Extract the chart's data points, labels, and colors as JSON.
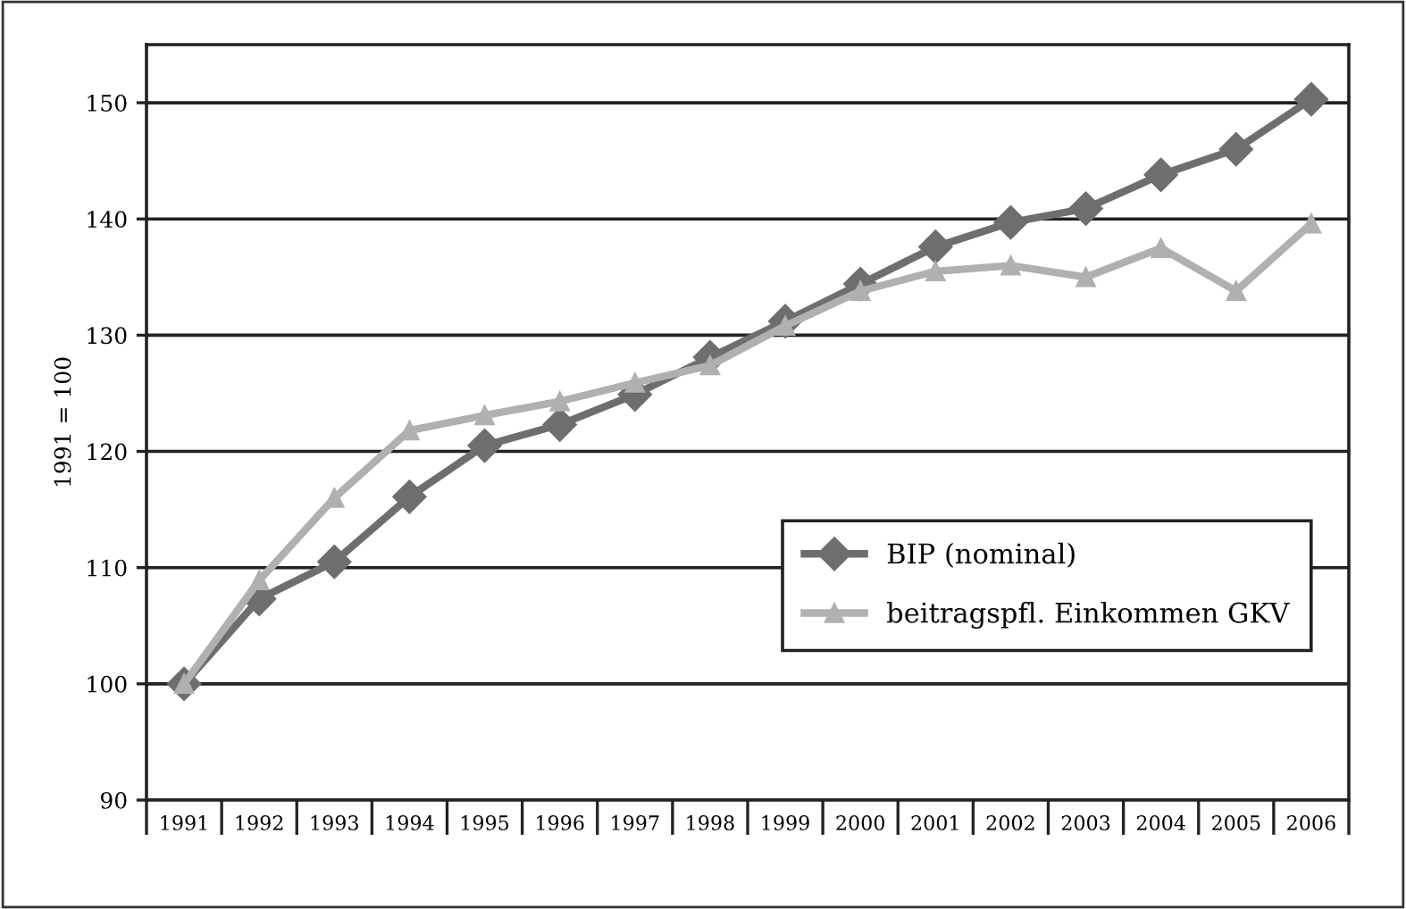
{
  "chart_data": {
    "type": "line",
    "ylabel": "1991 = 100",
    "categories": [
      "1991",
      "1992",
      "1993",
      "1994",
      "1995",
      "1996",
      "1997",
      "1998",
      "1999",
      "2000",
      "2001",
      "2002",
      "2003",
      "2004",
      "2005",
      "2006"
    ],
    "series": [
      {
        "name": "BIP (nominal)",
        "color": "#6e6e6e",
        "marker": "diamond",
        "values": [
          100,
          107.3,
          110.5,
          116.1,
          120.5,
          122.3,
          124.9,
          128.1,
          131.2,
          134.4,
          137.6,
          139.7,
          140.9,
          143.8,
          146.0,
          150.3
        ]
      },
      {
        "name": "beitragspfl. Einkommen GKV",
        "color": "#b0b0b0",
        "marker": "triangle",
        "values": [
          100,
          108.9,
          116.0,
          121.8,
          123.1,
          124.3,
          125.9,
          127.4,
          130.8,
          133.8,
          135.5,
          136.0,
          135.0,
          137.5,
          133.8,
          139.6
        ]
      }
    ],
    "ylim": [
      90,
      155
    ],
    "yticks": [
      90,
      100,
      110,
      120,
      130,
      140,
      150
    ],
    "grid": "y",
    "legend": "lower right",
    "line_style": "solid"
  }
}
